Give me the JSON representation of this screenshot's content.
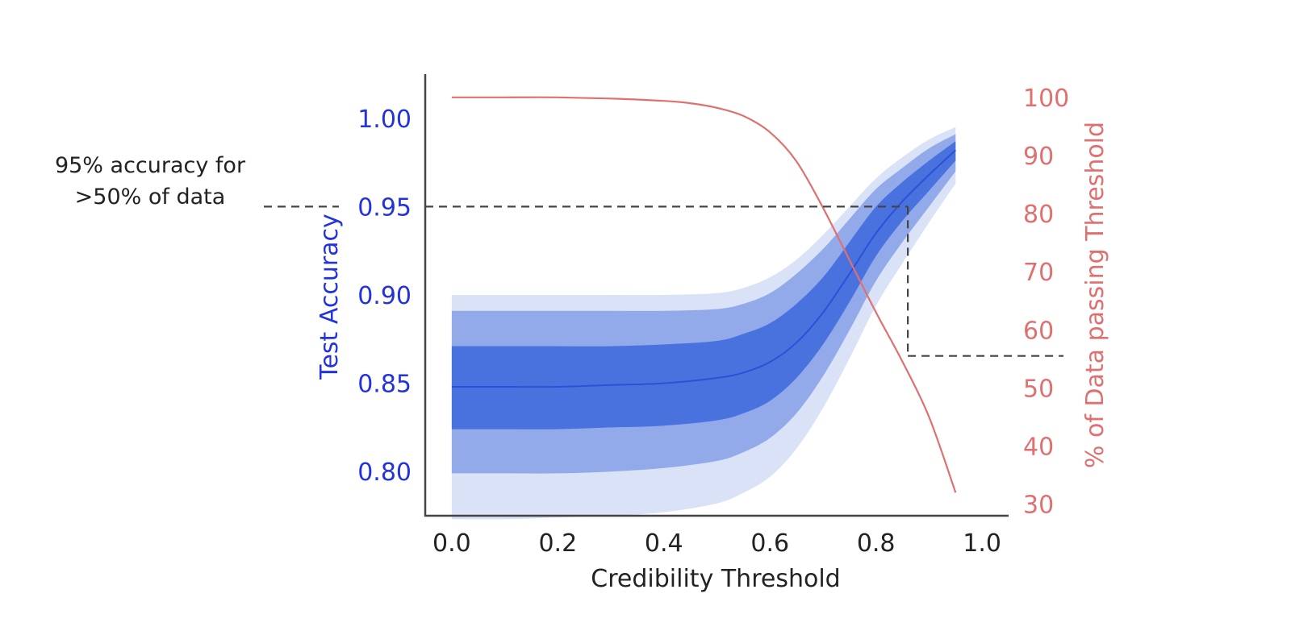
{
  "chart_data": {
    "type": "line",
    "xlabel": "Credibility Threshold",
    "ylabel_left": "Test Accuracy",
    "ylabel_right": "% of Data passing Threshold",
    "xlim": [
      -0.05,
      1.05
    ],
    "ylim_left": [
      0.775,
      1.025
    ],
    "ylim_right": [
      28,
      104
    ],
    "x_ticks": [
      "0.0",
      "0.2",
      "0.4",
      "0.6",
      "0.8",
      "1.0"
    ],
    "x_tick_values": [
      0.0,
      0.2,
      0.4,
      0.6,
      0.8,
      1.0
    ],
    "y_left_ticks": [
      "0.80",
      "0.85",
      "0.90",
      "0.95",
      "1.00"
    ],
    "y_left_tick_values": [
      0.8,
      0.85,
      0.9,
      0.95,
      1.0
    ],
    "y_right_ticks": [
      "30",
      "40",
      "50",
      "60",
      "70",
      "80",
      "90",
      "100"
    ],
    "y_right_tick_values": [
      30,
      40,
      50,
      60,
      70,
      80,
      90,
      100
    ],
    "colors": {
      "accuracy_line": "#2c50d8",
      "band_inner": "#4a72de",
      "band_middle": "#92aaea",
      "band_outer": "#dae2f7",
      "data_line": "#e07070",
      "left_axis_text": "#2233dd",
      "right_axis_text": "#e07070",
      "reference_line": "#444444"
    },
    "accuracy": {
      "x": [
        0.0,
        0.1,
        0.2,
        0.3,
        0.4,
        0.5,
        0.55,
        0.6,
        0.65,
        0.7,
        0.75,
        0.8,
        0.85,
        0.9,
        0.95
      ],
      "mean": [
        0.848,
        0.848,
        0.848,
        0.849,
        0.85,
        0.853,
        0.856,
        0.862,
        0.873,
        0.89,
        0.912,
        0.935,
        0.953,
        0.968,
        0.982
      ],
      "inner_lo": [
        0.824,
        0.824,
        0.824,
        0.825,
        0.826,
        0.829,
        0.833,
        0.84,
        0.853,
        0.872,
        0.896,
        0.922,
        0.942,
        0.959,
        0.976
      ],
      "inner_hi": [
        0.871,
        0.871,
        0.871,
        0.871,
        0.872,
        0.874,
        0.878,
        0.884,
        0.895,
        0.91,
        0.93,
        0.95,
        0.964,
        0.976,
        0.987
      ],
      "mid_lo": [
        0.799,
        0.799,
        0.799,
        0.8,
        0.802,
        0.806,
        0.811,
        0.819,
        0.833,
        0.854,
        0.88,
        0.908,
        0.93,
        0.95,
        0.97
      ],
      "mid_hi": [
        0.891,
        0.891,
        0.891,
        0.891,
        0.891,
        0.892,
        0.895,
        0.901,
        0.912,
        0.926,
        0.943,
        0.96,
        0.972,
        0.983,
        0.991
      ],
      "outer_lo": [
        0.773,
        0.773,
        0.774,
        0.775,
        0.777,
        0.782,
        0.788,
        0.797,
        0.813,
        0.836,
        0.864,
        0.894,
        0.918,
        0.941,
        0.963
      ],
      "outer_hi": [
        0.9,
        0.9,
        0.9,
        0.9,
        0.9,
        0.901,
        0.904,
        0.91,
        0.92,
        0.934,
        0.95,
        0.966,
        0.978,
        0.988,
        0.995
      ]
    },
    "data_passing": {
      "x": [
        0.0,
        0.1,
        0.2,
        0.3,
        0.4,
        0.45,
        0.5,
        0.55,
        0.6,
        0.65,
        0.7,
        0.75,
        0.8,
        0.85,
        0.9,
        0.95
      ],
      "y": [
        100,
        100,
        100,
        99.8,
        99.4,
        99.0,
        98.2,
        96.8,
        94.0,
        89.0,
        81.0,
        72.0,
        63.0,
        54.5,
        45.0,
        32.0
      ]
    },
    "reference": {
      "accuracy": 0.95,
      "threshold": 0.86,
      "percent": 55.5
    },
    "annotation_lines": [
      "95% accuracy for",
      ">50% of data"
    ]
  }
}
